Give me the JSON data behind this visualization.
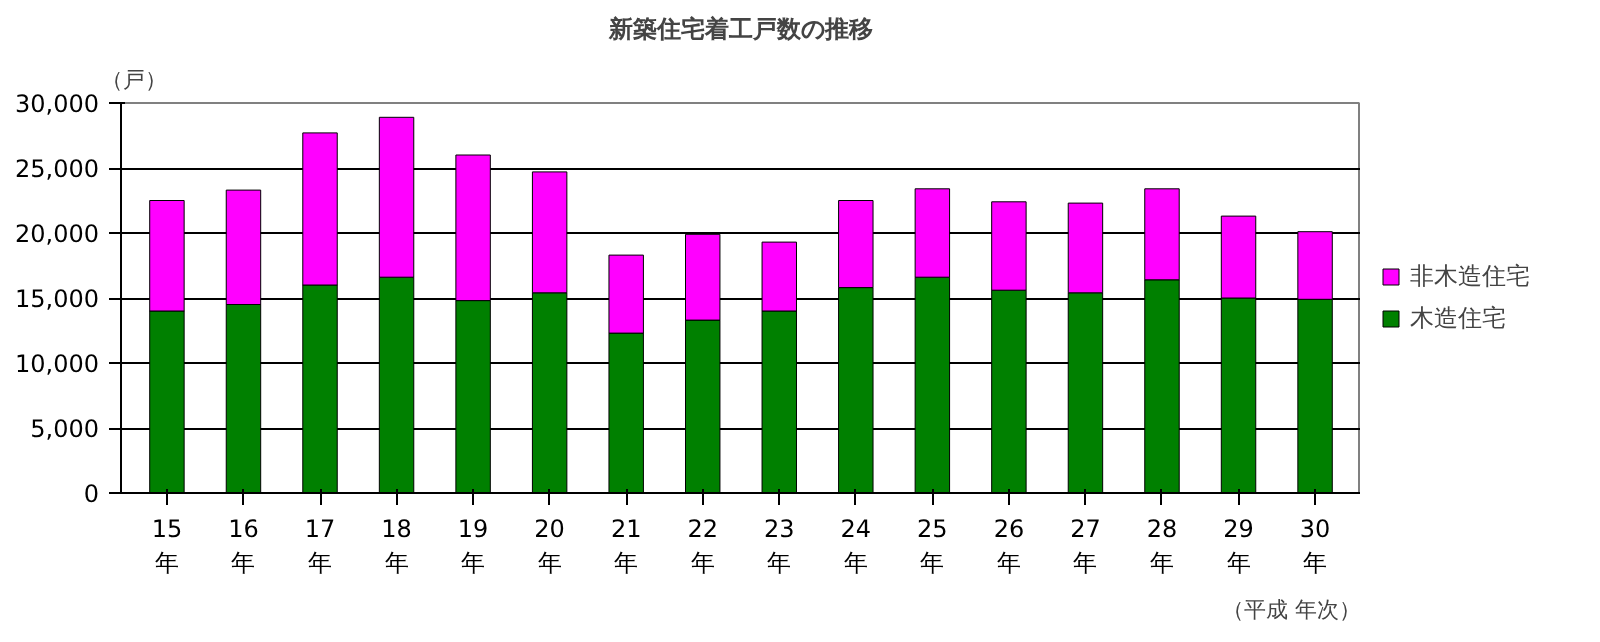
{
  "chart_data": {
    "type": "bar",
    "stacked": true,
    "title": "新築住宅着工戸数の推移",
    "ylabel": "（戸）",
    "xlabel": "（平成 年次）",
    "categories": [
      "15年",
      "16年",
      "17年",
      "18年",
      "19年",
      "20年",
      "21年",
      "22年",
      "23年",
      "24年",
      "25年",
      "26年",
      "27年",
      "28年",
      "29年",
      "30年"
    ],
    "series": [
      {
        "name": "木造住宅",
        "color": "#008000",
        "values": [
          14000,
          14500,
          16000,
          16600,
          14800,
          15400,
          12300,
          13300,
          14000,
          15800,
          16600,
          15600,
          15400,
          16400,
          15000,
          14900
        ]
      },
      {
        "name": "非木造住宅",
        "color": "#ff00ff",
        "values": [
          8500,
          8800,
          11700,
          12300,
          11200,
          9300,
          6000,
          6600,
          5300,
          6700,
          6800,
          6800,
          6900,
          7000,
          6300,
          5200
        ]
      }
    ],
    "ylim": [
      0,
      30000
    ],
    "yticks": [
      0,
      {
        "value": 5000,
        "label": "5,000"
      },
      {
        "value": 10000,
        "label": "10,000"
      },
      {
        "value": 15000,
        "label": "15,000"
      },
      {
        "value": 20000,
        "label": "20,000"
      },
      {
        "value": 25000,
        "label": "25,000"
      },
      {
        "value": 30000,
        "label": "30,000"
      }
    ],
    "grid": "y",
    "legend": "right"
  }
}
